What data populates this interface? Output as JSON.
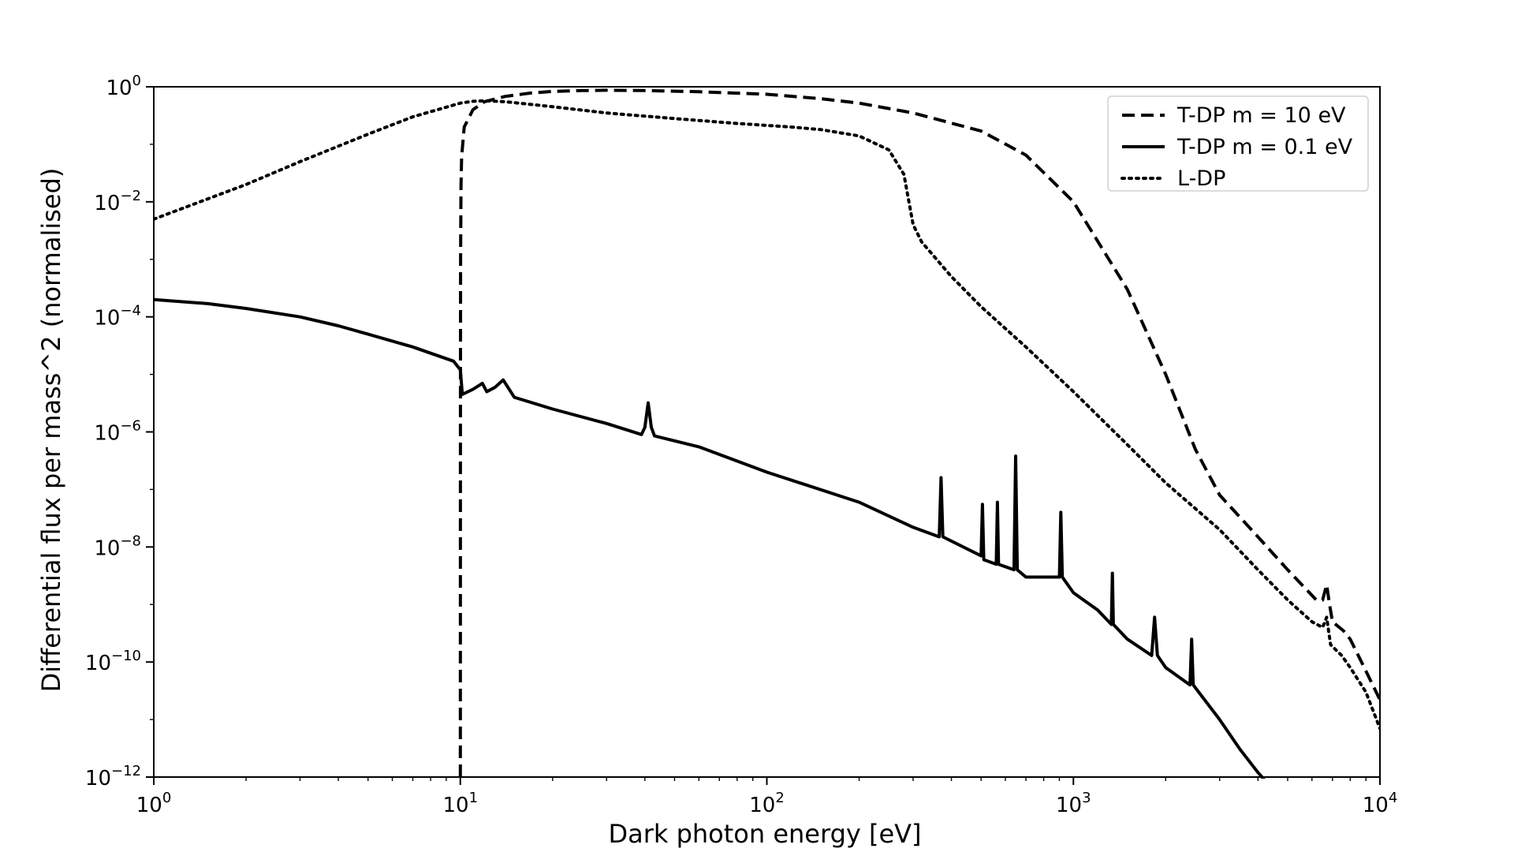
{
  "chart_data": {
    "type": "line",
    "title": "",
    "xlabel": "Dark photon energy [eV]",
    "ylabel": "Differential flux per mass^2 (normalised)",
    "x_scale": "log",
    "y_scale": "log",
    "xlim": [
      1,
      10000
    ],
    "ylim": [
      1e-12,
      1
    ],
    "x_ticks": [
      {
        "base": "10",
        "exp": "0",
        "value": 1
      },
      {
        "base": "10",
        "exp": "1",
        "value": 10
      },
      {
        "base": "10",
        "exp": "2",
        "value": 100
      },
      {
        "base": "10",
        "exp": "3",
        "value": 1000
      },
      {
        "base": "10",
        "exp": "4",
        "value": 10000
      }
    ],
    "y_ticks": [
      {
        "base": "10",
        "exp": "0",
        "value": 1
      },
      {
        "base": "10",
        "exp": "−2",
        "value": 0.01
      },
      {
        "base": "10",
        "exp": "−4",
        "value": 0.0001
      },
      {
        "base": "10",
        "exp": "−6",
        "value": 1e-06
      },
      {
        "base": "10",
        "exp": "−8",
        "value": 1e-08
      },
      {
        "base": "10",
        "exp": "−10",
        "value": 1e-10
      },
      {
        "base": "10",
        "exp": "−12",
        "value": 1e-12
      }
    ],
    "legend_position": "top-right",
    "grid": false,
    "series": [
      {
        "name": "T-DP m = 10 eV",
        "style": "dashed",
        "color": "#000000",
        "points": [
          [
            10.0,
            1e-12
          ],
          [
            10.01,
            1e-06
          ],
          [
            10.02,
            0.001
          ],
          [
            10.05,
            0.018
          ],
          [
            10.1,
            0.06
          ],
          [
            10.3,
            0.2
          ],
          [
            11,
            0.4
          ],
          [
            12,
            0.55
          ],
          [
            14,
            0.68
          ],
          [
            17,
            0.78
          ],
          [
            20,
            0.83
          ],
          [
            25,
            0.86
          ],
          [
            30,
            0.87
          ],
          [
            40,
            0.86
          ],
          [
            60,
            0.82
          ],
          [
            100,
            0.74
          ],
          [
            150,
            0.62
          ],
          [
            200,
            0.52
          ],
          [
            300,
            0.35
          ],
          [
            500,
            0.17
          ],
          [
            700,
            0.065
          ],
          [
            1000,
            0.01
          ],
          [
            1500,
            0.0003
          ],
          [
            2000,
            1e-05
          ],
          [
            2500,
            5e-07
          ],
          [
            3000,
            8e-08
          ],
          [
            4000,
            1.5e-08
          ],
          [
            5000,
            4e-09
          ],
          [
            6200,
            1.2e-09
          ],
          [
            6500,
            1.2e-09
          ],
          [
            6700,
            2.2e-09
          ],
          [
            6850,
            1e-09
          ],
          [
            7000,
            5e-10
          ],
          [
            7600,
            3.5e-10
          ],
          [
            8000,
            2.5e-10
          ],
          [
            9000,
            7e-11
          ],
          [
            10000,
            2.2e-11
          ]
        ]
      },
      {
        "name": "T-DP m = 0.1 eV",
        "style": "solid",
        "color": "#000000",
        "points": [
          [
            1,
            0.0002
          ],
          [
            1.5,
            0.00017
          ],
          [
            2,
            0.00014
          ],
          [
            3,
            0.0001
          ],
          [
            4,
            7e-05
          ],
          [
            5,
            5e-05
          ],
          [
            7,
            3e-05
          ],
          [
            9.5,
            1.7e-05
          ],
          [
            10,
            1.2e-05
          ],
          [
            10.15,
            4.5e-06
          ],
          [
            11,
            5.5e-06
          ],
          [
            11.8,
            7e-06
          ],
          [
            12.2,
            5e-06
          ],
          [
            13,
            6e-06
          ],
          [
            13.8,
            8e-06
          ],
          [
            15,
            4e-06
          ],
          [
            20,
            2.5e-06
          ],
          [
            30,
            1.4e-06
          ],
          [
            39,
            9e-07
          ],
          [
            40,
            1.2e-06
          ],
          [
            41,
            3.2e-06
          ],
          [
            42,
            1.2e-06
          ],
          [
            43,
            8.5e-07
          ],
          [
            60,
            5.5e-07
          ],
          [
            100,
            2e-07
          ],
          [
            200,
            6e-08
          ],
          [
            300,
            2.2e-08
          ],
          [
            365,
            1.5e-08
          ],
          [
            370,
            1.6e-07
          ],
          [
            375,
            1.5e-08
          ],
          [
            500,
            7e-09
          ],
          [
            505,
            5.5e-08
          ],
          [
            510,
            6e-09
          ],
          [
            560,
            5e-09
          ],
          [
            565,
            6e-08
          ],
          [
            570,
            5e-09
          ],
          [
            640,
            4e-09
          ],
          [
            648,
            3.8e-07
          ],
          [
            656,
            4e-09
          ],
          [
            700,
            3e-09
          ],
          [
            800,
            3e-09
          ],
          [
            900,
            3e-09
          ],
          [
            910,
            4e-08
          ],
          [
            920,
            3e-09
          ],
          [
            1000,
            1.6e-09
          ],
          [
            1200,
            8e-10
          ],
          [
            1330,
            4.5e-10
          ],
          [
            1340,
            3.5e-09
          ],
          [
            1350,
            4.5e-10
          ],
          [
            1500,
            2.5e-10
          ],
          [
            1800,
            1.3e-10
          ],
          [
            1840,
            6e-10
          ],
          [
            1880,
            1.3e-10
          ],
          [
            2000,
            8e-11
          ],
          [
            2400,
            4e-11
          ],
          [
            2430,
            2.5e-10
          ],
          [
            2460,
            4e-11
          ],
          [
            3000,
            1e-11
          ],
          [
            3500,
            3e-12
          ],
          [
            4000,
            1.2e-12
          ],
          [
            4200,
            9e-13
          ]
        ]
      },
      {
        "name": "L-DP",
        "style": "dotted",
        "color": "#000000",
        "points": [
          [
            1,
            0.005
          ],
          [
            2,
            0.02
          ],
          [
            3,
            0.05
          ],
          [
            5,
            0.15
          ],
          [
            7,
            0.3
          ],
          [
            10,
            0.52
          ],
          [
            11,
            0.56
          ],
          [
            12,
            0.57
          ],
          [
            14,
            0.55
          ],
          [
            20,
            0.45
          ],
          [
            30,
            0.35
          ],
          [
            50,
            0.28
          ],
          [
            80,
            0.23
          ],
          [
            120,
            0.2
          ],
          [
            150,
            0.18
          ],
          [
            200,
            0.14
          ],
          [
            250,
            0.08
          ],
          [
            280,
            0.03
          ],
          [
            300,
            0.004
          ],
          [
            320,
            0.002
          ],
          [
            400,
            0.0005
          ],
          [
            500,
            0.00015
          ],
          [
            700,
            3e-05
          ],
          [
            1000,
            5e-06
          ],
          [
            1500,
            6e-07
          ],
          [
            2000,
            1.3e-07
          ],
          [
            3000,
            2e-08
          ],
          [
            4000,
            4e-09
          ],
          [
            5000,
            1.2e-09
          ],
          [
            6000,
            5e-10
          ],
          [
            6500,
            4e-10
          ],
          [
            6700,
            6e-10
          ],
          [
            6900,
            2e-10
          ],
          [
            7500,
            1.3e-10
          ],
          [
            8000,
            8e-11
          ],
          [
            9000,
            3e-11
          ],
          [
            10000,
            7e-12
          ]
        ]
      }
    ]
  }
}
